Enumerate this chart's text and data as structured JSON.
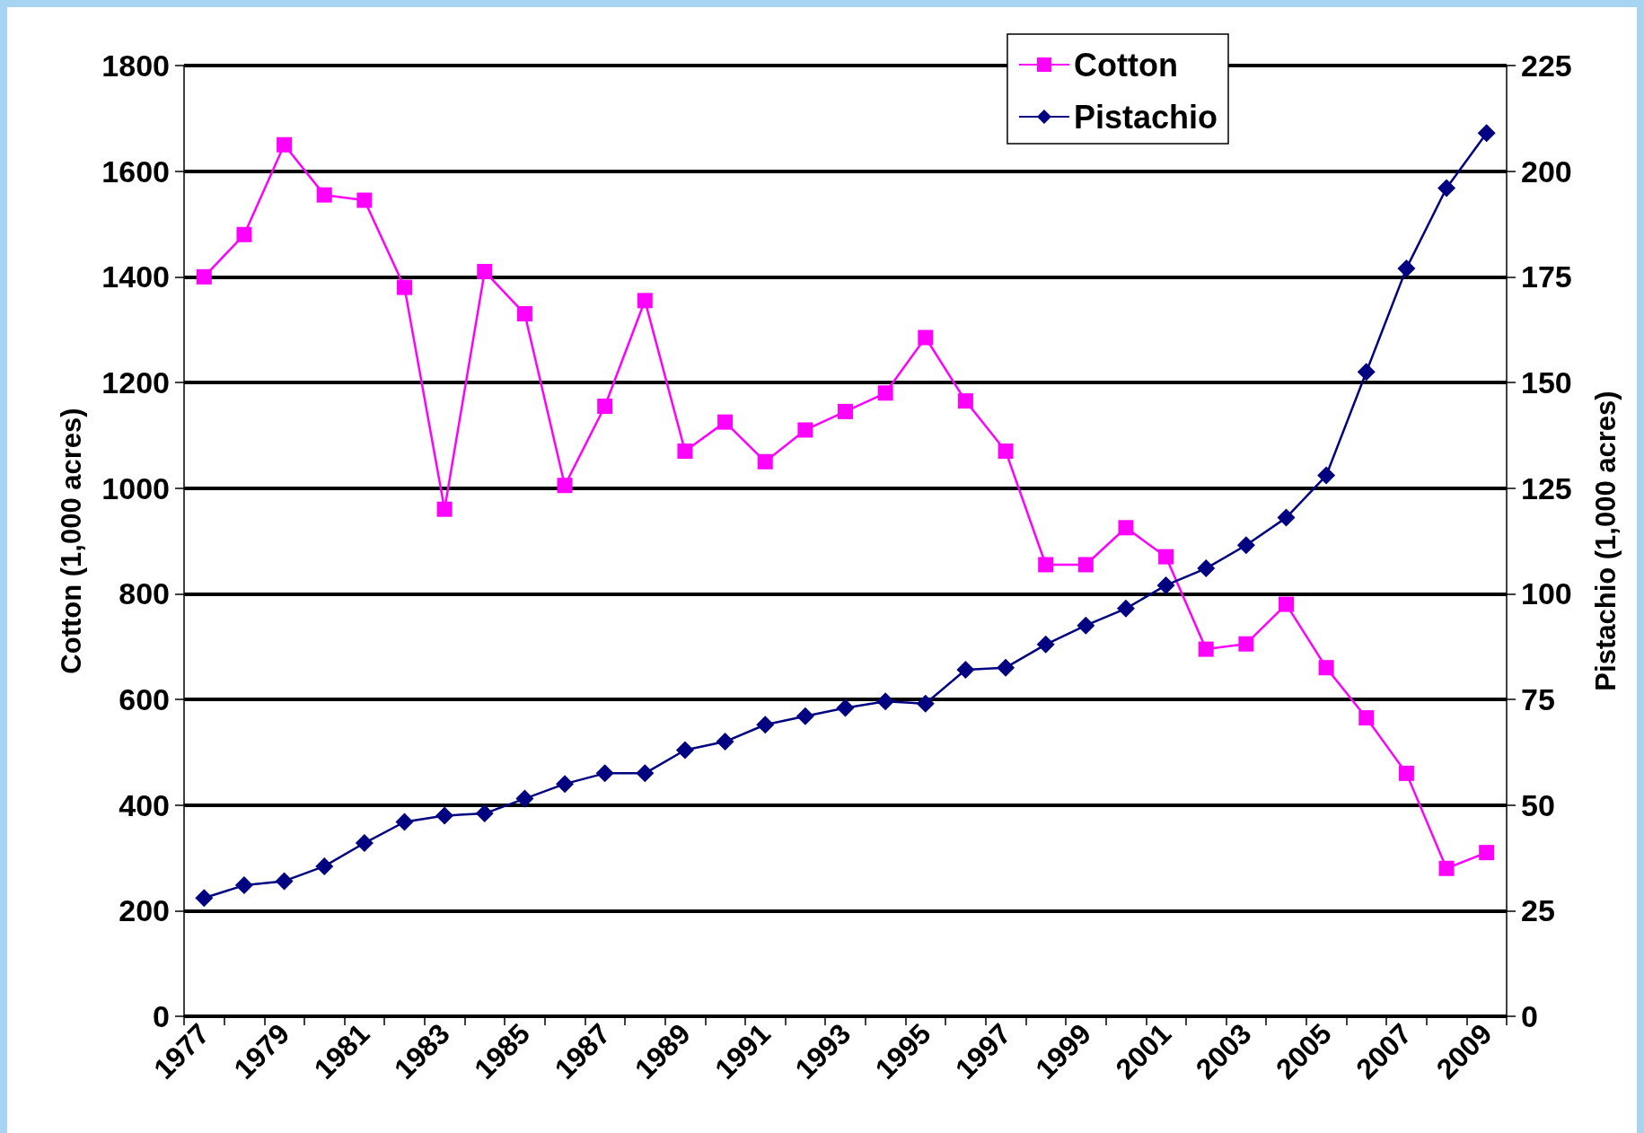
{
  "chart_data": {
    "type": "line",
    "ylabel": "Cotton (1,000 acres)",
    "y2label": "Pistachio (1,000 acres)",
    "categories": [
      "1977",
      null,
      "1979",
      null,
      "1981",
      null,
      "1983",
      null,
      "1985",
      null,
      "1987",
      null,
      "1989",
      null,
      "1991",
      null,
      "1993",
      null,
      "1995",
      null,
      "1997",
      null,
      "1999",
      null,
      "2001",
      null,
      "2003",
      null,
      "2005",
      null,
      "2007",
      null,
      "2009"
    ],
    "series": [
      {
        "name": "Cotton",
        "color": "#ff00ff",
        "marker": "square",
        "values": [
          1400,
          1480,
          1650,
          1555,
          1545,
          1380,
          960,
          1410,
          1330,
          1005,
          1155,
          1355,
          1070,
          1125,
          1050,
          1110,
          1145,
          1180,
          1285,
          1165,
          1070,
          855,
          855,
          925,
          870,
          695,
          705,
          780,
          660,
          565,
          460,
          280,
          310
        ]
      },
      {
        "name": "Pistachio",
        "color": "#000080",
        "marker": "diamond",
        "axis": "y2",
        "values": [
          28,
          31,
          32,
          35.5,
          41,
          46,
          47.5,
          48,
          51.5,
          55,
          57.5,
          57.5,
          63,
          65,
          69,
          71,
          73,
          74.5,
          74,
          82,
          82.5,
          88,
          92.5,
          96.5,
          102,
          106,
          111.5,
          118,
          128,
          152.5,
          177,
          196,
          209
        ]
      }
    ],
    "ylim": [
      0,
      1800
    ],
    "yticks": [
      0,
      200,
      400,
      600,
      800,
      1000,
      1200,
      1400,
      1600,
      1800
    ],
    "y2lim": [
      0,
      225
    ],
    "y2ticks": [
      0,
      25,
      50,
      75,
      100,
      125,
      150,
      175,
      200,
      225
    ],
    "grid": "y",
    "legend": "top right",
    "line_style": "solid"
  }
}
